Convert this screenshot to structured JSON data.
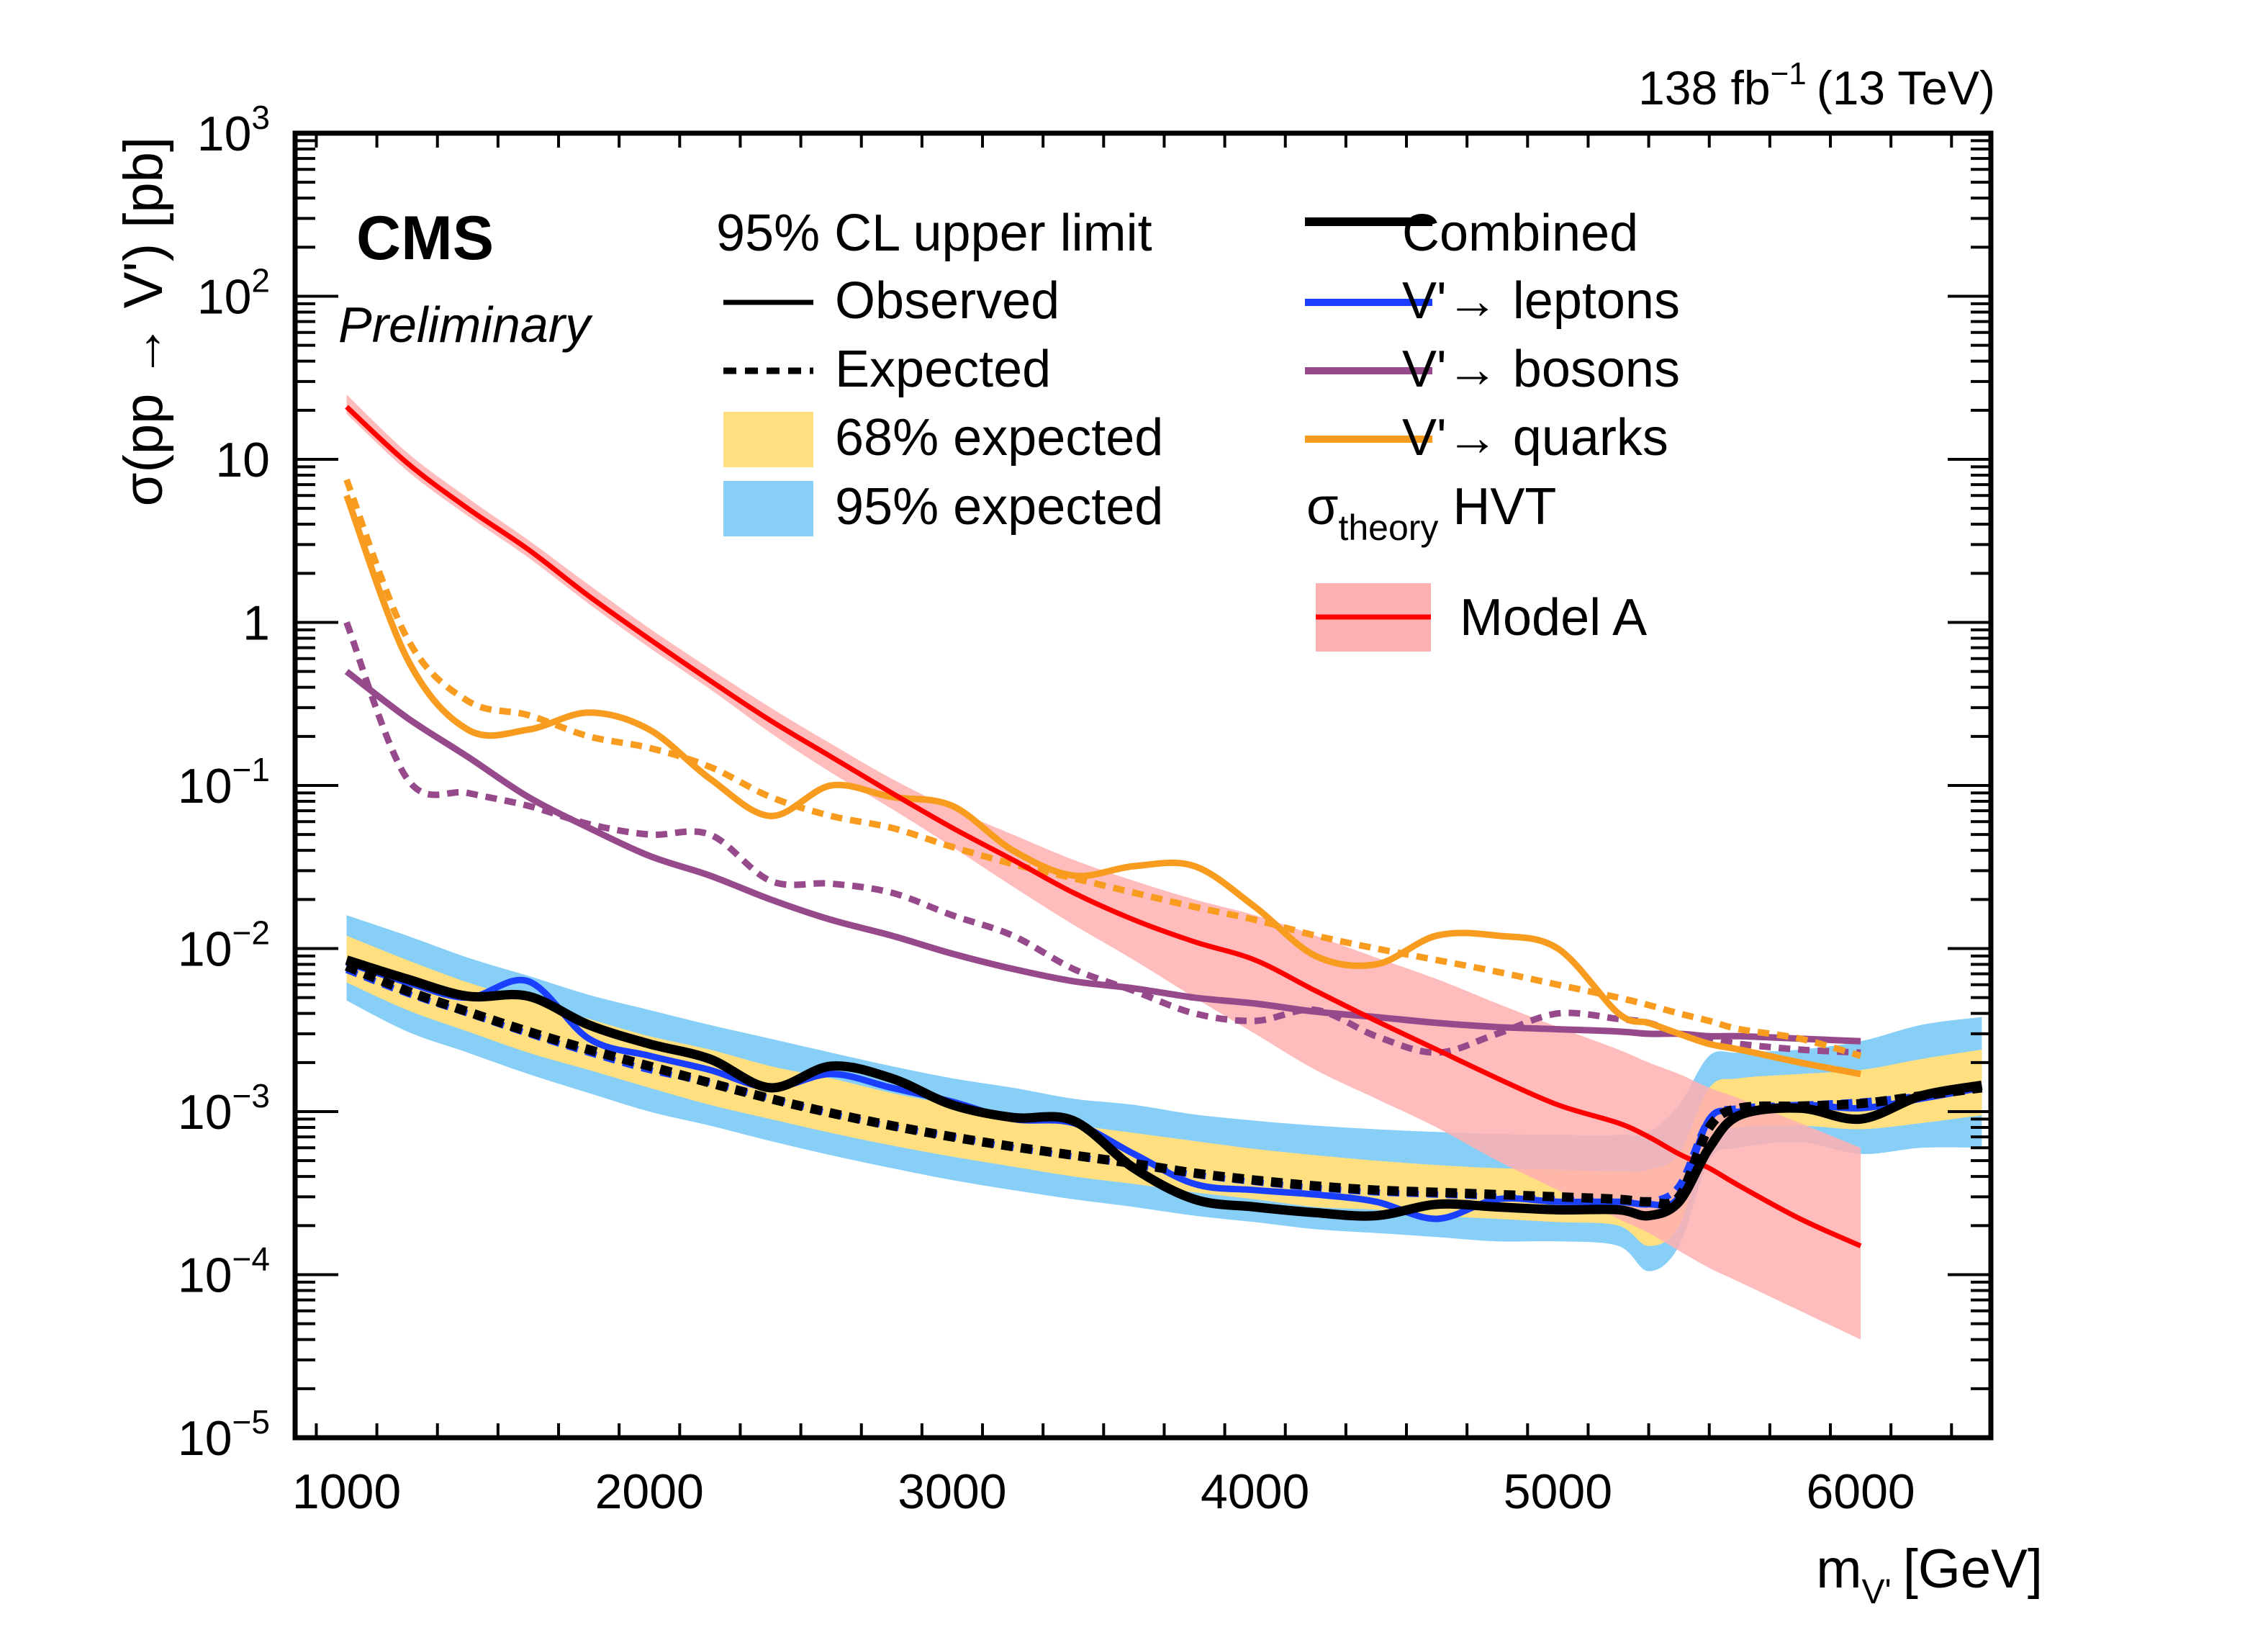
{
  "chart_data": {
    "type": "line",
    "title": "",
    "experiment_label": "CMS",
    "status_label": "Preliminary",
    "luminosity_label": {
      "main": "138 fb",
      "sup": "−1",
      "energy": "(13 TeV)"
    },
    "xlabel": {
      "main": "m",
      "sub": "V'",
      "unit": "[GeV]"
    },
    "ylabel": "σ(pp → V') [pb]",
    "xlim": [
      830,
      6430
    ],
    "ylim": [
      1e-05,
      1000
    ],
    "yscale": "log",
    "x_ticks": [
      1000,
      2000,
      3000,
      4000,
      5000,
      6000
    ],
    "y_ticks": [
      {
        "value": 1000,
        "base": "10",
        "exp": "3"
      },
      {
        "value": 100,
        "base": "10",
        "exp": "2"
      },
      {
        "value": 10,
        "base": "10",
        "exp": ""
      },
      {
        "value": 1,
        "base": "1",
        "exp": ""
      },
      {
        "value": 0.1,
        "base": "10",
        "exp": "−1"
      },
      {
        "value": 0.01,
        "base": "10",
        "exp": "−2"
      },
      {
        "value": 0.001,
        "base": "10",
        "exp": "−3"
      },
      {
        "value": 0.0001,
        "base": "10",
        "exp": "−4"
      },
      {
        "value": 1e-05,
        "base": "10",
        "exp": "−5"
      }
    ],
    "grid": false,
    "legend": {
      "placement": "top",
      "header": "95% CL upper limit",
      "col1": [
        {
          "key": "observed",
          "label": "Observed",
          "style": "solid-line"
        },
        {
          "key": "expected",
          "label": "Expected",
          "style": "dashed-line"
        },
        {
          "key": "band68",
          "label": "68% expected",
          "style": "box"
        },
        {
          "key": "band95",
          "label": "95% expected",
          "style": "box"
        }
      ],
      "col2": [
        {
          "key": "combined",
          "label": "Combined"
        },
        {
          "key": "leptons",
          "label": "V'→ leptons"
        },
        {
          "key": "bosons",
          "label": "V'→ bosons"
        },
        {
          "key": "quarks",
          "label": "V'→ quarks"
        }
      ],
      "theory_header": {
        "sigma": "σ",
        "sub": "theory",
        "rest": " HVT"
      },
      "theory_entry": "Model A"
    },
    "colors": {
      "combined": "#000000",
      "leptons": "#1a3fff",
      "bosons": "#964a8b",
      "quarks": "#f89c20",
      "theory": "#ff0000",
      "theory_band": "#ffb0b0",
      "band68": "#ffdf80",
      "band95": "#88cff8"
    },
    "x": [
      1000,
      1200,
      1400,
      1600,
      1800,
      2000,
      2200,
      2400,
      2600,
      2800,
      3000,
      3200,
      3400,
      3600,
      3800,
      4000,
      4200,
      4400,
      4600,
      4800,
      5000,
      5200,
      5300,
      5400,
      5500,
      5600,
      5800,
      6000,
      6200,
      6400
    ],
    "series": [
      {
        "name": "Combined observed",
        "key": "combined",
        "style": "solid",
        "width": "thick",
        "values": [
          0.0085,
          0.0065,
          0.0051,
          0.0051,
          0.0034,
          0.0026,
          0.0021,
          0.0014,
          0.0019,
          0.0016,
          0.0011,
          0.00092,
          0.00088,
          0.00045,
          0.00029,
          0.00026,
          0.00024,
          0.00023,
          0.00027,
          0.00026,
          0.00025,
          0.00025,
          0.00023,
          0.00028,
          0.0006,
          0.00095,
          0.00105,
          0.0009,
          0.00125,
          0.00145
        ]
      },
      {
        "name": "Combined expected",
        "key": "combined",
        "style": "dashed",
        "width": "thick",
        "values": [
          0.0078,
          0.0055,
          0.0041,
          0.0031,
          0.0024,
          0.0019,
          0.0015,
          0.0012,
          0.00098,
          0.00082,
          0.0007,
          0.00061,
          0.00054,
          0.00048,
          0.00042,
          0.00038,
          0.00035,
          0.00033,
          0.00032,
          0.00031,
          0.0003,
          0.00029,
          0.00028,
          0.0003,
          0.0008,
          0.00105,
          0.00108,
          0.00112,
          0.00125,
          0.0014
        ]
      },
      {
        "name": "Leptons observed",
        "key": "leptons",
        "style": "solid",
        "width": "normal",
        "values": [
          0.0082,
          0.0062,
          0.005,
          0.0063,
          0.0028,
          0.0022,
          0.0018,
          0.0014,
          0.0017,
          0.0014,
          0.00115,
          0.0009,
          0.00085,
          0.00055,
          0.00036,
          0.00033,
          0.00031,
          0.00028,
          0.00022,
          0.00029,
          0.00028,
          0.00028,
          0.00027,
          0.0003,
          0.0009,
          0.001,
          0.0011,
          0.00105,
          0.0012,
          0.0014
        ]
      },
      {
        "name": "Leptons expected",
        "key": "leptons",
        "style": "dashed",
        "width": "normal",
        "values": [
          0.0074,
          0.0053,
          0.004,
          0.003,
          0.0023,
          0.0018,
          0.0015,
          0.0012,
          0.00097,
          0.00081,
          0.0007,
          0.0006,
          0.00053,
          0.00047,
          0.00041,
          0.00037,
          0.00034,
          0.00032,
          0.00031,
          0.0003,
          0.00029,
          0.00028,
          0.00028,
          0.00035,
          0.0009,
          0.00105,
          0.0011,
          0.00115,
          0.00125,
          0.0014
        ]
      },
      {
        "name": "Bosons observed",
        "key": "bosons",
        "style": "solid",
        "width": "normal",
        "x_max": 6000,
        "values": [
          0.5,
          0.26,
          0.15,
          0.085,
          0.055,
          0.037,
          0.028,
          0.02,
          0.015,
          0.012,
          0.0093,
          0.0075,
          0.0063,
          0.0057,
          0.005,
          0.0046,
          0.0041,
          0.0038,
          0.0035,
          0.0033,
          0.0032,
          0.0031,
          0.003,
          0.003,
          0.0029,
          0.0029,
          0.0028,
          0.0027,
          null,
          null
        ]
      },
      {
        "name": "Bosons expected",
        "key": "bosons",
        "style": "dashed",
        "width": "normal",
        "x_max": 6000,
        "values": [
          1.0,
          0.11,
          0.09,
          0.075,
          0.058,
          0.05,
          0.05,
          0.026,
          0.025,
          0.022,
          0.016,
          0.012,
          0.0075,
          0.0055,
          0.004,
          0.0036,
          0.0042,
          0.0029,
          0.0023,
          0.003,
          0.004,
          0.0037,
          0.0035,
          0.003,
          0.0028,
          0.0026,
          0.0024,
          0.0023,
          null,
          null
        ]
      },
      {
        "name": "Quarks observed",
        "key": "quarks",
        "style": "solid",
        "width": "normal",
        "x_max": 6000,
        "values": [
          6.0,
          0.6,
          0.22,
          0.22,
          0.28,
          0.22,
          0.11,
          0.065,
          0.1,
          0.085,
          0.075,
          0.04,
          0.028,
          0.032,
          0.032,
          0.018,
          0.009,
          0.008,
          0.012,
          0.012,
          0.01,
          0.004,
          0.0035,
          0.003,
          0.0026,
          0.0024,
          0.002,
          0.0017,
          null,
          null
        ]
      },
      {
        "name": "Quarks expected",
        "key": "quarks",
        "style": "dashed",
        "width": "normal",
        "x_max": 6000,
        "values": [
          7.5,
          0.8,
          0.33,
          0.27,
          0.2,
          0.17,
          0.13,
          0.085,
          0.065,
          0.055,
          0.042,
          0.033,
          0.027,
          0.022,
          0.018,
          0.015,
          0.012,
          0.01,
          0.0085,
          0.0072,
          0.006,
          0.005,
          0.0045,
          0.004,
          0.0036,
          0.0032,
          0.0028,
          0.0022,
          null,
          null
        ]
      },
      {
        "name": "HVT Model A",
        "key": "theory",
        "style": "solid",
        "width": "normal",
        "x_max": 6000,
        "values": [
          21,
          9.5,
          5.0,
          2.8,
          1.45,
          0.79,
          0.44,
          0.25,
          0.15,
          0.09,
          0.055,
          0.035,
          0.022,
          0.015,
          0.011,
          0.0085,
          0.0055,
          0.0036,
          0.0024,
          0.0016,
          0.0011,
          0.00085,
          0.0007,
          0.00055,
          0.00045,
          0.00035,
          0.00022,
          0.00015,
          null,
          null
        ]
      }
    ],
    "bands": [
      {
        "name": "95% expected",
        "key": "band95",
        "low": [
          0.0048,
          0.0031,
          0.0023,
          0.0017,
          0.0013,
          0.001,
          0.00082,
          0.00066,
          0.00054,
          0.00045,
          0.00038,
          0.00033,
          0.00029,
          0.00026,
          0.00023,
          0.00021,
          0.00019,
          0.00018,
          0.00017,
          0.00016,
          0.00016,
          0.00015,
          0.000105,
          0.00015,
          0.0005,
          0.0006,
          0.00065,
          0.00055,
          0.0006,
          0.0006
        ],
        "high": [
          0.016,
          0.012,
          0.0088,
          0.0068,
          0.0052,
          0.0042,
          0.0034,
          0.0028,
          0.0023,
          0.0019,
          0.0016,
          0.0014,
          0.0012,
          0.0011,
          0.00096,
          0.00088,
          0.00082,
          0.00078,
          0.00075,
          0.00073,
          0.00072,
          0.00072,
          0.00075,
          0.0011,
          0.0022,
          0.0023,
          0.0024,
          0.0027,
          0.0034,
          0.0038
        ]
      },
      {
        "name": "68% expected",
        "key": "band68",
        "low": [
          0.0062,
          0.0042,
          0.0031,
          0.0023,
          0.0018,
          0.0014,
          0.0011,
          0.0009,
          0.00074,
          0.00062,
          0.00053,
          0.00046,
          0.0004,
          0.00036,
          0.00032,
          0.00029,
          0.00026,
          0.00025,
          0.00023,
          0.00022,
          0.00021,
          0.0002,
          0.00015,
          0.0002,
          0.00068,
          0.0008,
          0.00082,
          0.00078,
          0.00085,
          0.00095
        ],
        "high": [
          0.012,
          0.0085,
          0.0062,
          0.0048,
          0.0037,
          0.0029,
          0.0024,
          0.0019,
          0.0016,
          0.0013,
          0.0011,
          0.00095,
          0.00083,
          0.00074,
          0.00066,
          0.00059,
          0.00054,
          0.0005,
          0.00047,
          0.00045,
          0.00044,
          0.00043,
          0.00044,
          0.00055,
          0.0014,
          0.0016,
          0.0017,
          0.0018,
          0.0021,
          0.0024
        ]
      },
      {
        "name": "HVT Model A uncertainty",
        "key": "theory_band",
        "x_max": 6000,
        "low": [
          19,
          8.5,
          4.5,
          2.5,
          1.3,
          0.7,
          0.39,
          0.21,
          0.12,
          0.072,
          0.042,
          0.024,
          0.014,
          0.0085,
          0.005,
          0.003,
          0.0018,
          0.0012,
          0.0008,
          0.0005,
          0.00033,
          0.00022,
          0.00018,
          0.00014,
          0.00011,
          9e-05,
          6e-05,
          4e-05,
          null,
          null
        ],
        "high": [
          25,
          11,
          5.8,
          3.2,
          1.7,
          0.92,
          0.52,
          0.3,
          0.18,
          0.11,
          0.072,
          0.05,
          0.035,
          0.026,
          0.02,
          0.016,
          0.012,
          0.0088,
          0.0065,
          0.0046,
          0.0033,
          0.0024,
          0.002,
          0.0017,
          0.0014,
          0.0012,
          0.00085,
          0.0006,
          null,
          null
        ]
      }
    ]
  }
}
